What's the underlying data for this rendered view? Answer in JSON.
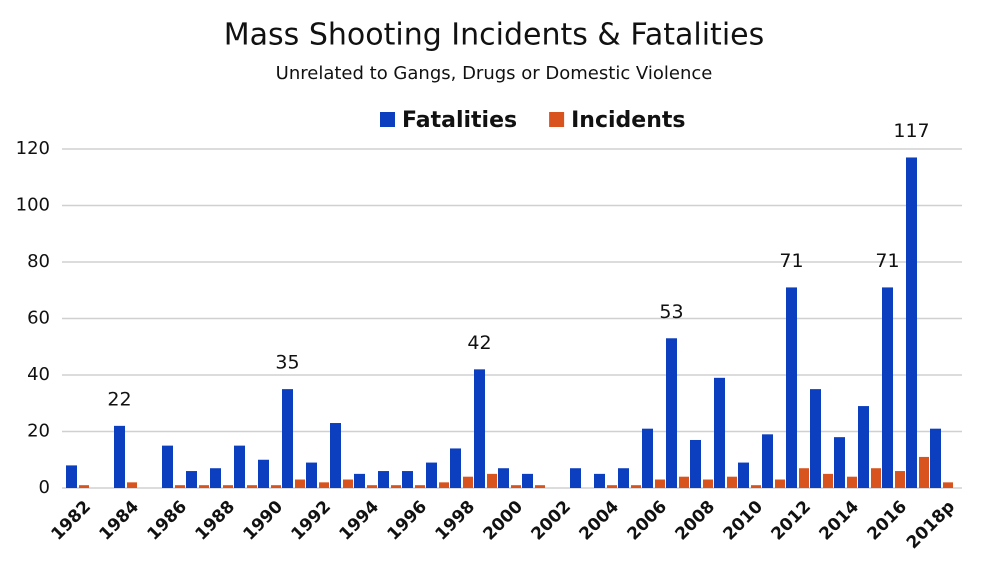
{
  "chart_data": {
    "type": "bar",
    "title": "Mass Shooting Incidents & Fatalities",
    "subtitle": "Unrelated to Gangs, Drugs or Domestic Violence",
    "categories": [
      "1982",
      null,
      "1984",
      null,
      "1986",
      null,
      "1988",
      null,
      "1990",
      null,
      "1992",
      null,
      "1994",
      null,
      "1996",
      null,
      "1998",
      null,
      "2000",
      null,
      "2002",
      null,
      "2004",
      null,
      "2006",
      null,
      "2008",
      null,
      "2010",
      null,
      "2012",
      null,
      "2014",
      null,
      "2016",
      null,
      "2018p"
    ],
    "series": [
      {
        "name": "Fatalities",
        "color": "#0b3fbf",
        "values": [
          8,
          0,
          22,
          0,
          15,
          6,
          7,
          15,
          10,
          35,
          9,
          23,
          5,
          6,
          6,
          9,
          14,
          42,
          7,
          5,
          0,
          7,
          5,
          7,
          21,
          53,
          17,
          39,
          9,
          19,
          71,
          35,
          18,
          29,
          71,
          117,
          21
        ],
        "value_labels": [
          null,
          null,
          "22",
          null,
          null,
          null,
          null,
          null,
          null,
          "35",
          null,
          null,
          null,
          null,
          null,
          null,
          null,
          "42",
          null,
          null,
          null,
          null,
          null,
          null,
          null,
          "53",
          null,
          null,
          null,
          null,
          "71",
          null,
          null,
          null,
          "71",
          "117",
          null
        ]
      },
      {
        "name": "Incidents",
        "color": "#d9531e",
        "values": [
          1,
          0,
          2,
          0,
          1,
          1,
          1,
          1,
          1,
          3,
          2,
          3,
          1,
          1,
          1,
          2,
          4,
          5,
          1,
          1,
          0,
          0,
          1,
          1,
          3,
          4,
          3,
          4,
          1,
          3,
          7,
          5,
          4,
          7,
          6,
          11,
          2
        ]
      }
    ],
    "ylim": [
      0,
      120
    ],
    "yticks": [
      0,
      20,
      40,
      60,
      80,
      100,
      120
    ],
    "grid": true,
    "legend": "top"
  }
}
